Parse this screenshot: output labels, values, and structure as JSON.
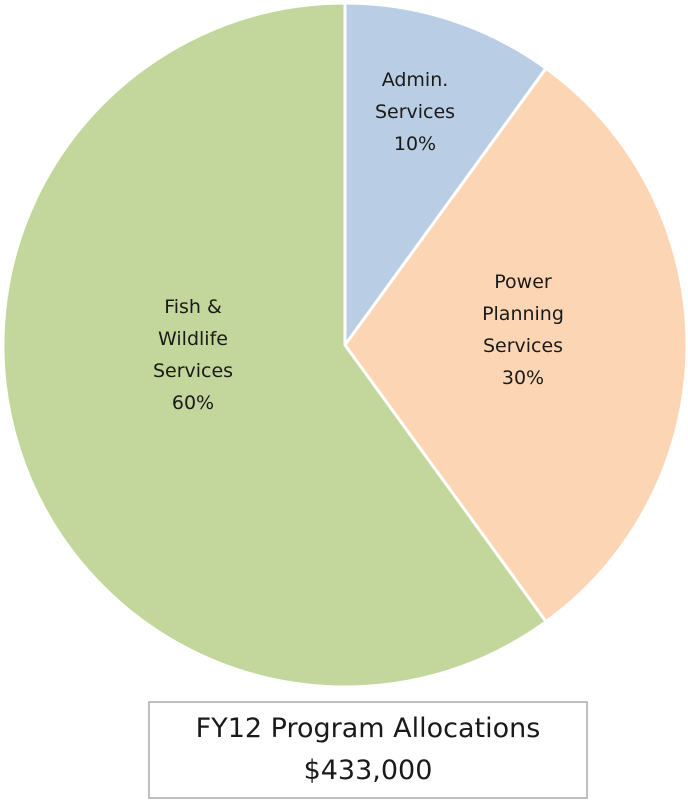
{
  "chart_data": {
    "type": "pie",
    "title": "FY12 Program Allocations",
    "subtitle": "$433,000",
    "categories": [
      "Admin. Services",
      "Power Planning Services",
      "Fish & Wildlife Services"
    ],
    "values": [
      10,
      30,
      60
    ],
    "value_labels": [
      "10%",
      "30%",
      "60%"
    ],
    "colors": [
      "#b9cde5",
      "#fcd5b5",
      "#c3d69b"
    ]
  }
}
